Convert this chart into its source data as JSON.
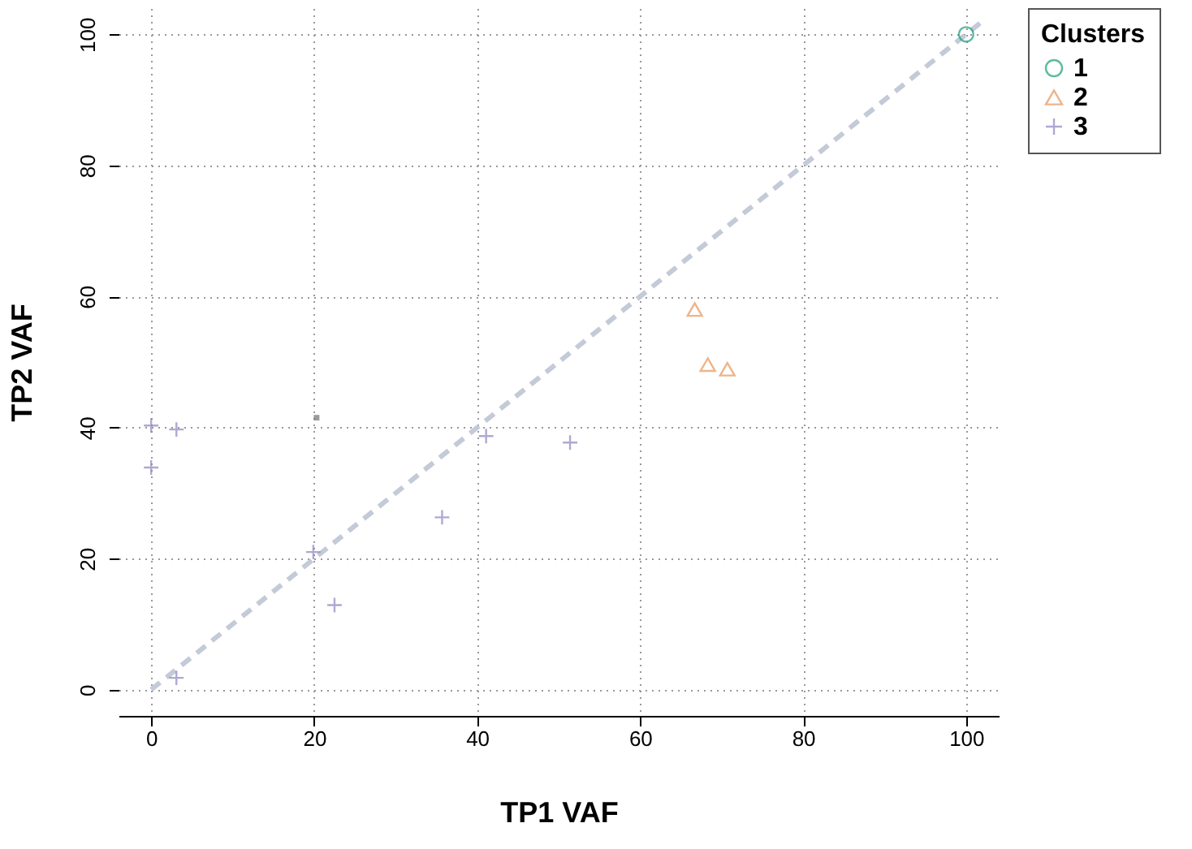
{
  "chart_data": {
    "type": "scatter",
    "xlabel": "TP1 VAF",
    "ylabel": "TP2 VAF",
    "legend_title": "Clusters",
    "xlim": [
      -4,
      104
    ],
    "ylim": [
      -4,
      104
    ],
    "xticks": [
      0,
      20,
      40,
      60,
      80,
      100
    ],
    "yticks": [
      0,
      20,
      40,
      60,
      80,
      100
    ],
    "grid": true,
    "legend": "right",
    "series": [
      {
        "type": "line",
        "color": "#c3cad8",
        "line_style": "dashed",
        "x": [
          0,
          102
        ],
        "values": [
          0,
          102
        ]
      },
      {
        "name": "1",
        "color": "#1b9e77",
        "marker": "circle",
        "x": [
          100
        ],
        "values": [
          100
        ]
      },
      {
        "name": "2",
        "color": "#e6955a",
        "marker": "triangle",
        "x": [
          66.7,
          68.3,
          70.7
        ],
        "values": [
          58.0,
          49.6,
          48.9
        ]
      },
      {
        "name": "3",
        "color": "#8e85c0",
        "marker": "cross",
        "x": [
          0,
          3.1,
          0,
          19.9,
          22.5,
          35.7,
          41.1,
          51.4,
          3.1
        ],
        "values": [
          40.3,
          39.7,
          33.9,
          21,
          12.9,
          26.3,
          38.7,
          37.7,
          1.8
        ]
      },
      {
        "color": "#707070",
        "marker": "square",
        "x": [
          20.3
        ],
        "values": [
          41.5
        ]
      }
    ]
  }
}
